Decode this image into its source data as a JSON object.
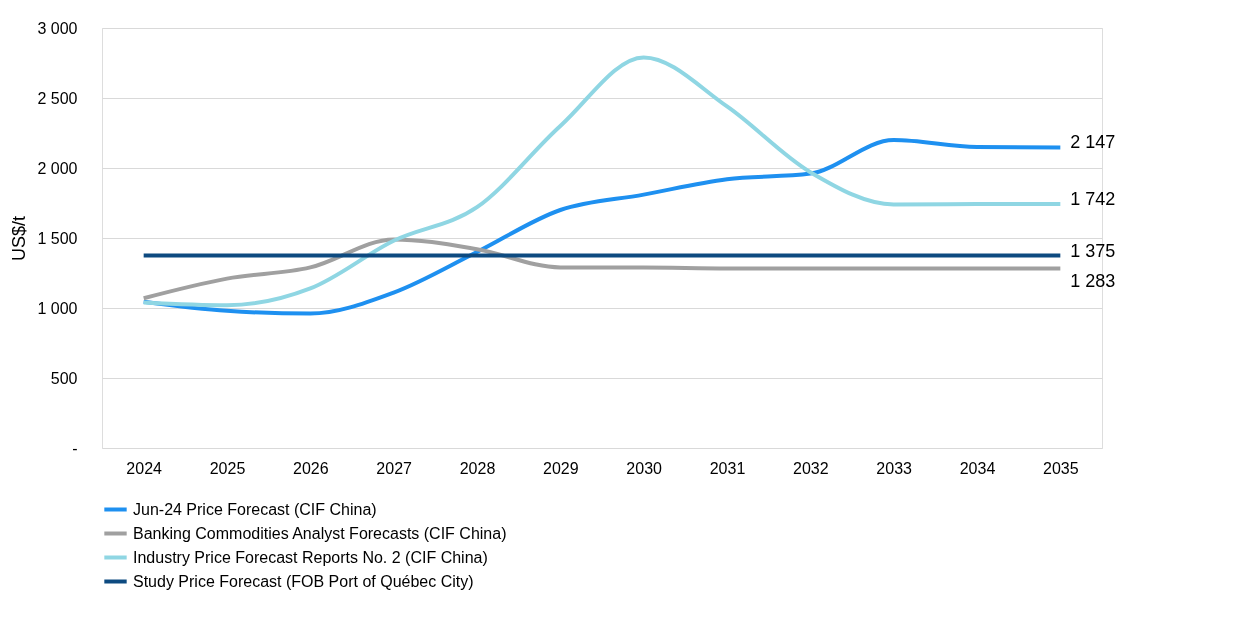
{
  "chart_data": {
    "type": "line",
    "ylabel": "US$/t",
    "x": [
      2024,
      2025,
      2026,
      2027,
      2028,
      2029,
      2030,
      2031,
      2032,
      2033,
      2034,
      2035
    ],
    "xlim": [
      2023.5,
      2035.5
    ],
    "xticks": [
      2024,
      2025,
      2026,
      2027,
      2028,
      2029,
      2030,
      2031,
      2032,
      2033,
      2034,
      2035
    ],
    "ylim": [
      0,
      3000
    ],
    "yticks": [
      {
        "value": 0,
        "label": "-"
      },
      {
        "value": 500,
        "label": "500"
      },
      {
        "value": 1000,
        "label": "1 000"
      },
      {
        "value": 1500,
        "label": "1 500"
      },
      {
        "value": 2000,
        "label": "2 000"
      },
      {
        "value": 2500,
        "label": "2 500"
      },
      {
        "value": 3000,
        "label": "3 000"
      }
    ],
    "grid": "y",
    "legend": "bottom left",
    "marker": "none",
    "line_style": "solid",
    "series": [
      {
        "name": "Jun-24 Price Forecast (CIF China)",
        "color": "#1e90f0",
        "values": [
          1045,
          980,
          960,
          1110,
          1400,
          1700,
          1810,
          1920,
          1960,
          2200,
          2150,
          2147
        ],
        "value_labels": [
          null,
          null,
          null,
          null,
          null,
          null,
          null,
          null,
          null,
          null,
          null,
          "2 147"
        ]
      },
      {
        "name": "Banking Commodities Analyst Forecasts (CIF China)",
        "color": "#a0a0a0",
        "values": [
          1070,
          1210,
          1290,
          1490,
          1420,
          1290,
          1290,
          1283,
          1283,
          1283,
          1283,
          1283
        ],
        "value_labels": [
          null,
          null,
          null,
          null,
          null,
          null,
          null,
          null,
          null,
          null,
          null,
          "1 283"
        ]
      },
      {
        "name": "Industry Price Forecast Reports No. 2 (CIF China)",
        "color": "#8fd6e3",
        "values": [
          1040,
          1020,
          1140,
          1480,
          1720,
          2300,
          2790,
          2440,
          1970,
          1740,
          1742,
          1742
        ],
        "value_labels": [
          null,
          null,
          null,
          null,
          null,
          null,
          null,
          null,
          null,
          null,
          null,
          "1 742"
        ]
      },
      {
        "name": "Study Price Forecast (FOB Port of Québec City)",
        "color": "#0d4a80",
        "values": [
          1375,
          1375,
          1375,
          1375,
          1375,
          1375,
          1375,
          1375,
          1375,
          1375,
          1375,
          1375
        ],
        "value_labels": [
          null,
          null,
          null,
          null,
          null,
          null,
          null,
          null,
          null,
          null,
          null,
          "1 375"
        ]
      }
    ]
  }
}
